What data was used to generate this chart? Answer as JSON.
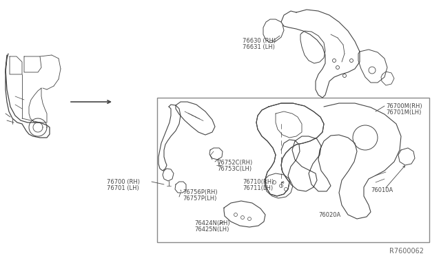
{
  "bg_color": "#ffffff",
  "ref_code": "R7600062",
  "lc": "#444444",
  "fs": 6.0,
  "labels": {
    "top_right_panel": [
      "76630 (RH)",
      "76631 (LH)"
    ],
    "box_top_right": [
      "76700M(RH)",
      "76701M(LH)"
    ],
    "box_clip": [
      "76752C(RH)",
      "76753C(LH)"
    ],
    "box_small": [
      "76756P(RH)",
      "76757P(LH)"
    ],
    "box_center": [
      "76710(RH)",
      "76711(LH)"
    ],
    "box_bottom": [
      "76424N(RH)",
      "76425N(LH)"
    ],
    "box_right_mid": "76010A",
    "box_bottom_right": "76020A",
    "left_label": [
      "76700 (RH)",
      "76701 (LH)"
    ]
  }
}
